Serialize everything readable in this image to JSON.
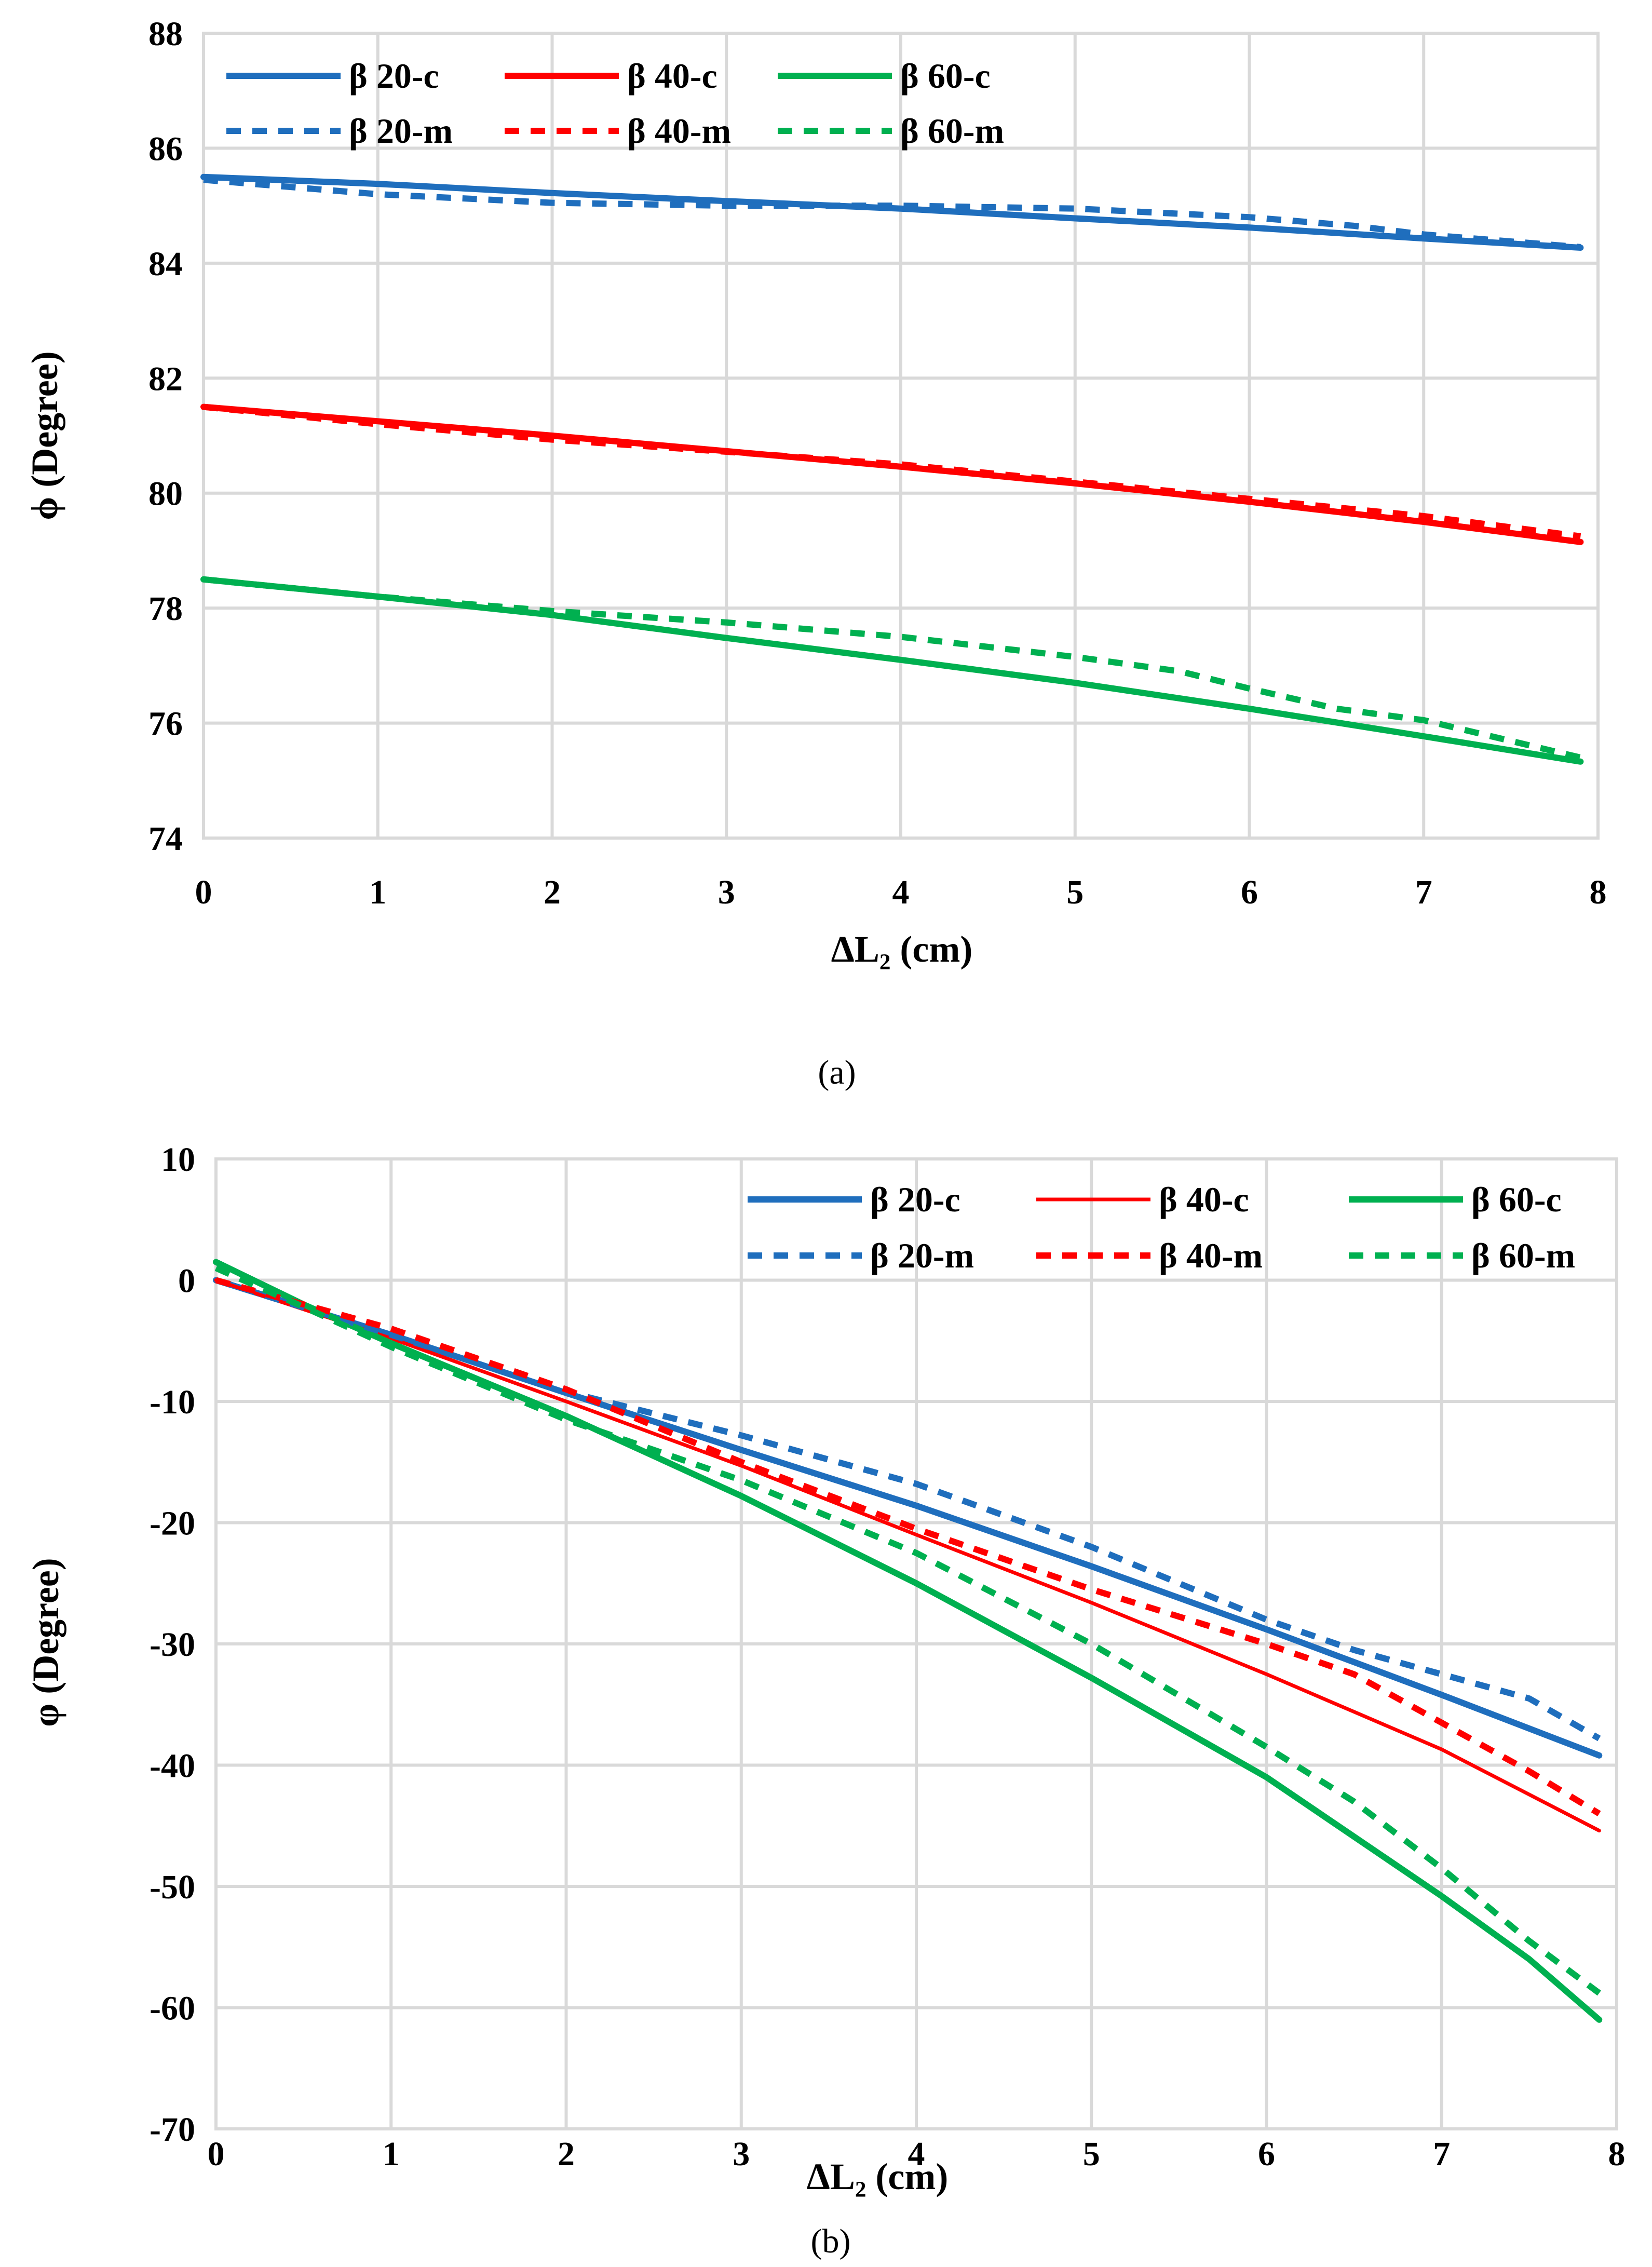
{
  "chart_data": [
    {
      "type": "line",
      "caption": "(a)",
      "xlabel": "ΔL₂ (cm)",
      "ylabel": "ϕ (Degree)",
      "xlim": [
        0,
        8
      ],
      "ylim": [
        74,
        88
      ],
      "xticks": [
        "0",
        "1",
        "2",
        "3",
        "4",
        "5",
        "6",
        "7",
        "8"
      ],
      "yticks": [
        "74",
        "76",
        "78",
        "80",
        "82",
        "84",
        "86",
        "88"
      ],
      "grid": true,
      "legend_position": "top-left",
      "series": [
        {
          "name": "β 20-c",
          "color": "#1f6ebd",
          "style": "solid",
          "width": 12,
          "x": [
            0,
            1,
            2,
            3,
            4,
            5,
            6,
            7,
            7.9
          ],
          "y": [
            85.5,
            85.38,
            85.22,
            85.08,
            84.95,
            84.78,
            84.62,
            84.43,
            84.27
          ]
        },
        {
          "name": "β 40-c",
          "color": "#ff0000",
          "style": "solid",
          "width": 12,
          "x": [
            0,
            1,
            2,
            3,
            4,
            5,
            6,
            7,
            7.9
          ],
          "y": [
            81.5,
            81.25,
            81.0,
            80.73,
            80.46,
            80.17,
            79.85,
            79.5,
            79.15
          ]
        },
        {
          "name": "β 60-c",
          "color": "#00b050",
          "style": "solid",
          "width": 12,
          "x": [
            0,
            1,
            2,
            3,
            4,
            5,
            6,
            7,
            7.9
          ],
          "y": [
            78.5,
            78.2,
            77.88,
            77.48,
            77.1,
            76.7,
            76.25,
            75.77,
            75.33
          ]
        },
        {
          "name": "β 20-m",
          "color": "#1f6ebd",
          "style": "dashed",
          "width": 12,
          "x": [
            0,
            1,
            2,
            3,
            4,
            5,
            6,
            6.6,
            7,
            7.9
          ],
          "y": [
            85.45,
            85.2,
            85.05,
            85.0,
            85.0,
            84.95,
            84.8,
            84.65,
            84.5,
            84.28
          ]
        },
        {
          "name": "β 40-m",
          "color": "#ff0000",
          "style": "dashed",
          "width": 12,
          "x": [
            0,
            1,
            2,
            3,
            4,
            5,
            6,
            7,
            7.9
          ],
          "y": [
            81.5,
            81.2,
            80.93,
            80.72,
            80.5,
            80.2,
            79.9,
            79.6,
            79.25
          ]
        },
        {
          "name": "β 60-m",
          "color": "#00b050",
          "style": "dashed",
          "width": 12,
          "x": [
            0,
            1,
            2,
            3,
            4,
            5,
            5.6,
            6,
            6.5,
            7,
            7.9
          ],
          "y": [
            78.5,
            78.2,
            77.95,
            77.75,
            77.5,
            77.15,
            76.9,
            76.6,
            76.25,
            76.05,
            75.4
          ]
        }
      ]
    },
    {
      "type": "line",
      "caption": "(b)",
      "xlabel": "ΔL₂ (cm)",
      "ylabel": "φ (Degree)",
      "xlim": [
        0,
        8
      ],
      "ylim": [
        -70,
        10
      ],
      "xticks": [
        "0",
        "1",
        "2",
        "3",
        "4",
        "5",
        "6",
        "7",
        "8"
      ],
      "yticks": [
        "-70",
        "-60",
        "-50",
        "-40",
        "-30",
        "-20",
        "-10",
        "0",
        "10"
      ],
      "grid": true,
      "legend_position": "top-right",
      "series": [
        {
          "name": "β 20-c",
          "color": "#1f6ebd",
          "style": "solid",
          "width": 12,
          "x": [
            0,
            1,
            2,
            3,
            4,
            5,
            6,
            7,
            7.9
          ],
          "y": [
            0,
            -4.5,
            -9.3,
            -14.0,
            -18.6,
            -23.6,
            -28.8,
            -34.2,
            -39.2
          ]
        },
        {
          "name": "β 40-c",
          "color": "#ff0000",
          "style": "solid",
          "width": 7,
          "x": [
            0,
            1,
            2,
            3,
            4,
            5,
            6,
            7,
            7.9
          ],
          "y": [
            0,
            -4.8,
            -10.0,
            -15.3,
            -21.0,
            -26.6,
            -32.5,
            -38.7,
            -45.4
          ]
        },
        {
          "name": "β 60-c",
          "color": "#00b050",
          "style": "solid",
          "width": 12,
          "x": [
            0,
            0.5,
            1,
            2,
            3,
            4,
            5,
            6,
            7,
            7.5,
            7.9
          ],
          "y": [
            1.5,
            -2.0,
            -5.2,
            -11.2,
            -17.8,
            -25.0,
            -32.8,
            -41.0,
            -50.8,
            -56.0,
            -61.0
          ]
        },
        {
          "name": "β 20-m",
          "color": "#1f6ebd",
          "style": "dashed",
          "width": 12,
          "x": [
            0,
            1,
            2,
            3,
            4,
            5,
            6,
            6.5,
            7,
            7.5,
            7.9
          ],
          "y": [
            0,
            -4.5,
            -9.2,
            -12.8,
            -16.8,
            -22.0,
            -28.0,
            -30.5,
            -32.5,
            -34.5,
            -37.8
          ]
        },
        {
          "name": "β 40-m",
          "color": "#ff0000",
          "style": "dashed",
          "width": 12,
          "x": [
            0,
            1,
            2,
            3,
            4,
            5,
            6,
            6.5,
            7,
            7.5,
            7.9
          ],
          "y": [
            0,
            -4.0,
            -9.0,
            -15.0,
            -20.5,
            -25.5,
            -30.0,
            -32.5,
            -36.5,
            -40.5,
            -44.0
          ]
        },
        {
          "name": "β 60-m",
          "color": "#00b050",
          "style": "dashed",
          "width": 12,
          "x": [
            0,
            0.5,
            1,
            2,
            3,
            4,
            5,
            6,
            6.5,
            7,
            7.5,
            7.9
          ],
          "y": [
            1.0,
            -2.2,
            -5.5,
            -11.5,
            -16.5,
            -22.5,
            -30.0,
            -38.5,
            -43.0,
            -48.5,
            -54.5,
            -58.8
          ]
        }
      ]
    }
  ]
}
